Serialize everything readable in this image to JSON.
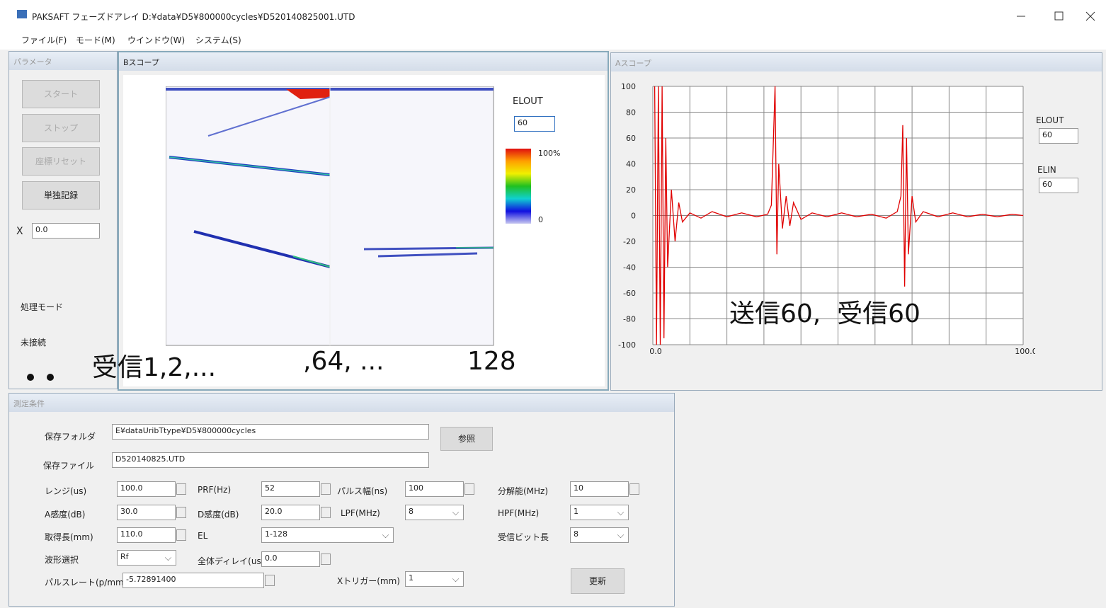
{
  "window": {
    "title": "PAKSAFT フェーズドアレイ D:¥data¥D5¥800000cycles¥D520140825001.UTD",
    "menu": [
      "ファイル(F)",
      "モード(M)",
      "ウインドウ(W)",
      "システム(S)"
    ]
  },
  "parameters": {
    "title": "パラメータ",
    "buttons": [
      "スタート",
      "ストップ",
      "座標リセット",
      "単独記録"
    ],
    "x_label": "X",
    "x_value": "0.0",
    "mode_label": "処理モード",
    "status": "未接続"
  },
  "b_scope": {
    "title": "Bスコープ",
    "elout_label": "ELOUT",
    "elout_value": "60",
    "colorbar_labels": [
      "100%",
      "0"
    ],
    "annotations": [
      "受信1,2,...",
      ",64, ...",
      "128"
    ]
  },
  "a_scope": {
    "title": "Aスコープ",
    "elout_label": "ELOUT",
    "elout_value": "60",
    "elin_label": "ELIN",
    "elin_value": "60",
    "annotation": "送信60,  受信60",
    "chart": {
      "type": "line",
      "color": "#e00000",
      "grid": true,
      "xlim": [
        0,
        100
      ],
      "ylim": [
        -100,
        100
      ],
      "xticks": [
        {
          "value": 0,
          "label": "0.0"
        },
        {
          "value": 100,
          "label": "100.0"
        }
      ],
      "xgrid": [
        0,
        10,
        20,
        30,
        40,
        50,
        60,
        70,
        80,
        90,
        100
      ],
      "yticks": [
        100,
        80,
        60,
        40,
        20,
        0,
        -20,
        -40,
        -60,
        -80,
        -100
      ],
      "x": [
        0.5,
        1,
        1.5,
        2,
        2.5,
        3,
        3.5,
        4,
        5,
        6,
        7,
        8,
        10,
        13,
        16,
        20,
        24,
        28,
        31,
        32,
        33,
        33.5,
        34,
        35,
        36,
        37,
        38,
        40,
        43,
        47,
        51,
        55,
        59,
        63,
        66,
        67,
        67.5,
        68,
        68.5,
        69,
        70,
        71,
        73,
        77,
        81,
        85,
        89,
        93,
        97,
        100
      ],
      "values": [
        100,
        -100,
        100,
        -100,
        100,
        -95,
        60,
        -40,
        20,
        -20,
        10,
        -5,
        2,
        -2,
        3,
        -1,
        2,
        -1,
        1,
        8,
        100,
        -30,
        40,
        -10,
        15,
        -8,
        10,
        -3,
        2,
        -1,
        2,
        -1,
        1,
        -2,
        3,
        15,
        70,
        -55,
        60,
        -30,
        15,
        -5,
        3,
        -1,
        2,
        -1,
        1,
        -1,
        1,
        0
      ]
    }
  },
  "conditions": {
    "title": "測定条件",
    "folder_label": "保存フォルダ",
    "folder": "E¥dataUribTtype¥D5¥800000cycles",
    "browse": "参照",
    "file_label": "保存ファイル",
    "file": "D520140825.UTD",
    "update": "更新",
    "fields": [
      {
        "label": "レンジ(us)",
        "value": "100.0"
      },
      {
        "label": "PRF(Hz)",
        "value": "52"
      },
      {
        "label": "パルス幅(ns)",
        "value": "100"
      },
      {
        "label": "分解能(MHz)",
        "value": "10"
      },
      {
        "label": "A感度(dB)",
        "value": "30.0"
      },
      {
        "label": "D感度(dB)",
        "value": "20.0"
      },
      {
        "label": "LPF(MHz)",
        "value": "8"
      },
      {
        "label": "HPF(MHz)",
        "value": "1"
      },
      {
        "label": "取得長(mm)",
        "value": "110.0"
      },
      {
        "label": "EL",
        "value": "1-128"
      },
      {
        "label": "受信ビット長",
        "value": "8"
      },
      {
        "label": "波形選択",
        "value": "Rf"
      },
      {
        "label": "全体ディレイ(us)",
        "value": "0.0"
      },
      {
        "label": "パルスレート(p/mm)",
        "value": "-5.72891400"
      },
      {
        "label": "Xトリガー(mm)",
        "value": "1"
      }
    ]
  }
}
